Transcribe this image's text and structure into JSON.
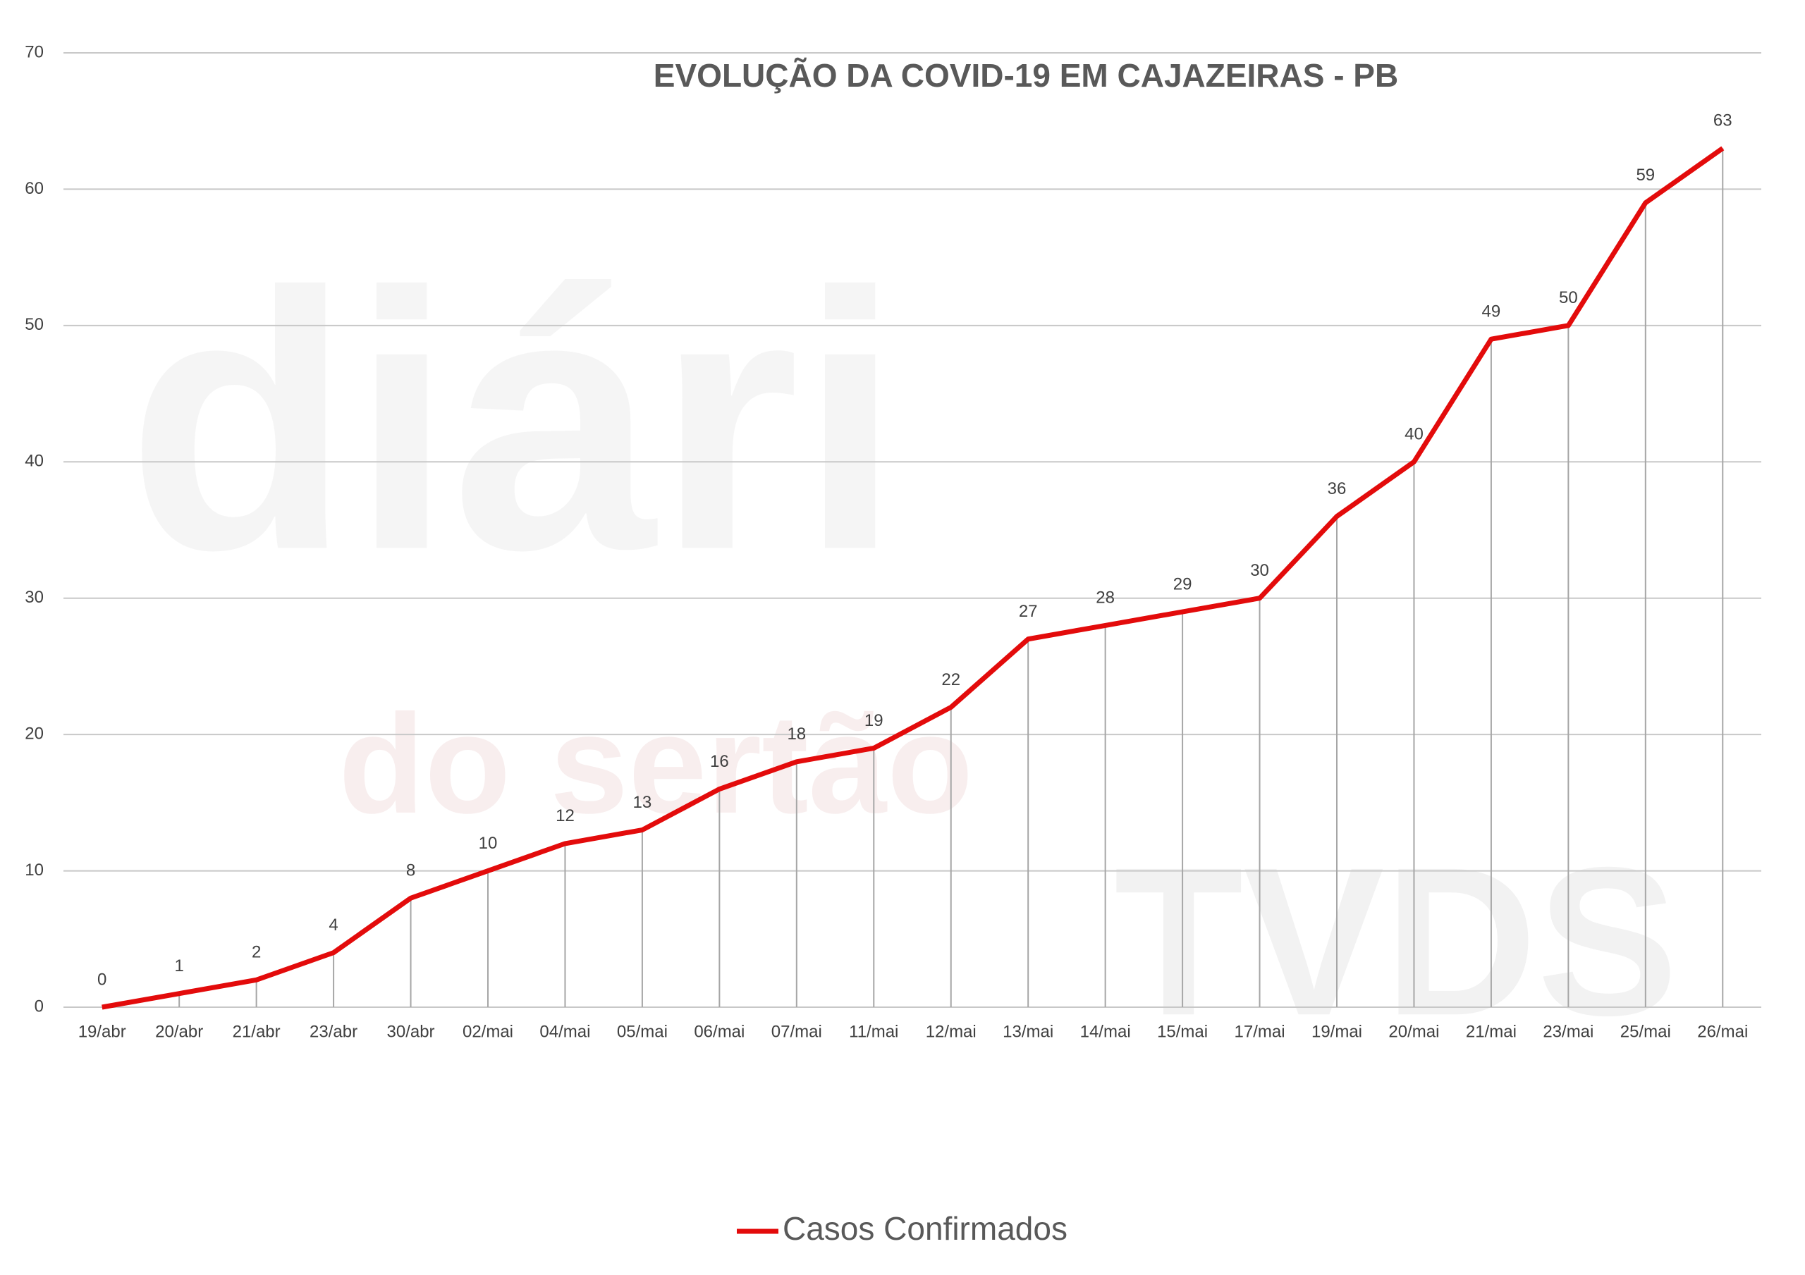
{
  "chart_data": {
    "type": "line",
    "title": "EVOLUÇÃO DA COVID-19 EM CAJAZEIRAS - PB",
    "categories": [
      "19/abr",
      "20/abr",
      "21/abr",
      "23/abr",
      "30/abr",
      "02/mai",
      "04/mai",
      "05/mai",
      "06/mai",
      "07/mai",
      "11/mai",
      "12/mai",
      "13/mai",
      "14/mai",
      "15/mai",
      "17/mai",
      "19/mai",
      "20/mai",
      "21/mai",
      "23/mai",
      "25/mai",
      "26/mai"
    ],
    "series": [
      {
        "name": "Casos Confirmados",
        "color": "#e30b0b",
        "values": [
          0,
          1,
          2,
          4,
          8,
          10,
          12,
          13,
          16,
          18,
          19,
          22,
          27,
          28,
          29,
          30,
          36,
          40,
          49,
          50,
          59,
          63
        ]
      }
    ],
    "ylim": [
      0,
      70
    ],
    "yticks": [
      0,
      10,
      20,
      30,
      40,
      50,
      60,
      70
    ],
    "grid": true,
    "legend": "bottom",
    "watermark": [
      "diári",
      "do sertão",
      "TVDS"
    ]
  }
}
